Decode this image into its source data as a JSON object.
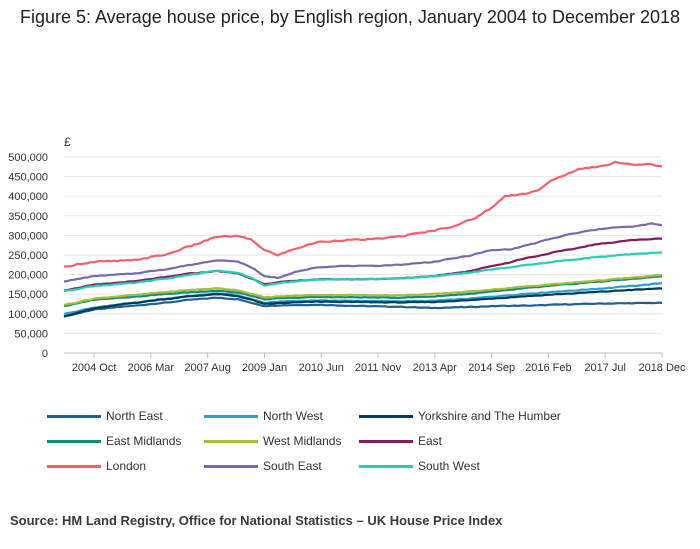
{
  "chart_data": {
    "type": "line",
    "title": "Figure 5: Average house price, by English region, January 2004 to December 2018",
    "ylabel": "£",
    "xlabel": "",
    "ylim": [
      0,
      500000
    ],
    "xlim": [
      0,
      179
    ],
    "y_ticks": [
      0,
      50000,
      100000,
      150000,
      200000,
      250000,
      300000,
      350000,
      400000,
      450000,
      500000
    ],
    "y_tick_labels": [
      "0",
      "50,000",
      "100,000",
      "150,000",
      "200,000",
      "250,000",
      "300,000",
      "350,000",
      "400,000",
      "450,000",
      "500,000"
    ],
    "x_ticks": [
      9,
      26,
      43,
      60,
      77,
      94,
      111,
      128,
      145,
      162,
      179
    ],
    "x_tick_labels": [
      "2004 Oct",
      "2006 Mar",
      "2007 Aug",
      "2009 Jan",
      "2010 Jun",
      "2011 Nov",
      "2013 Apr",
      "2014 Sep",
      "2016 Feb",
      "2017 Jul",
      "2018 Dec"
    ],
    "grid": true,
    "legend_position": "bottom",
    "series": [
      {
        "name": "North East",
        "color": "#206095",
        "anchors": [
          [
            0,
            94000
          ],
          [
            10,
            112000
          ],
          [
            20,
            120000
          ],
          [
            30,
            128000
          ],
          [
            38,
            136000
          ],
          [
            46,
            141000
          ],
          [
            52,
            137000
          ],
          [
            56,
            128000
          ],
          [
            60,
            120000
          ],
          [
            66,
            122000
          ],
          [
            76,
            123000
          ],
          [
            88,
            120000
          ],
          [
            100,
            118000
          ],
          [
            110,
            115000
          ],
          [
            120,
            117000
          ],
          [
            130,
            120000
          ],
          [
            140,
            121000
          ],
          [
            150,
            124000
          ],
          [
            160,
            126000
          ],
          [
            170,
            127000
          ],
          [
            179,
            128000
          ]
        ]
      },
      {
        "name": "North West",
        "color": "#27a0cc",
        "anchors": [
          [
            0,
            100000
          ],
          [
            10,
            117000
          ],
          [
            20,
            127000
          ],
          [
            30,
            138000
          ],
          [
            38,
            146000
          ],
          [
            46,
            152000
          ],
          [
            52,
            147000
          ],
          [
            56,
            138000
          ],
          [
            60,
            128000
          ],
          [
            66,
            132000
          ],
          [
            76,
            134000
          ],
          [
            88,
            133000
          ],
          [
            100,
            132000
          ],
          [
            110,
            133000
          ],
          [
            120,
            138000
          ],
          [
            130,
            145000
          ],
          [
            140,
            152000
          ],
          [
            150,
            158000
          ],
          [
            160,
            164000
          ],
          [
            170,
            171000
          ],
          [
            179,
            178000
          ]
        ]
      },
      {
        "name": "Yorkshire and The Humber",
        "color": "#003c57",
        "anchors": [
          [
            0,
            94000
          ],
          [
            10,
            115000
          ],
          [
            20,
            127000
          ],
          [
            30,
            137000
          ],
          [
            38,
            145000
          ],
          [
            46,
            150000
          ],
          [
            52,
            145000
          ],
          [
            56,
            136000
          ],
          [
            60,
            125000
          ],
          [
            66,
            128000
          ],
          [
            76,
            131000
          ],
          [
            88,
            130000
          ],
          [
            100,
            129000
          ],
          [
            110,
            130000
          ],
          [
            120,
            134000
          ],
          [
            130,
            140000
          ],
          [
            140,
            146000
          ],
          [
            150,
            151000
          ],
          [
            160,
            156000
          ],
          [
            170,
            161000
          ],
          [
            179,
            165000
          ]
        ]
      },
      {
        "name": "East Midlands",
        "color": "#118c7b",
        "anchors": [
          [
            0,
            120000
          ],
          [
            10,
            137000
          ],
          [
            20,
            143000
          ],
          [
            30,
            150000
          ],
          [
            38,
            155000
          ],
          [
            46,
            159000
          ],
          [
            52,
            154000
          ],
          [
            56,
            146000
          ],
          [
            60,
            137000
          ],
          [
            66,
            140000
          ],
          [
            76,
            143000
          ],
          [
            88,
            142000
          ],
          [
            100,
            141000
          ],
          [
            110,
            144000
          ],
          [
            120,
            150000
          ],
          [
            130,
            158000
          ],
          [
            140,
            167000
          ],
          [
            150,
            175000
          ],
          [
            160,
            182000
          ],
          [
            170,
            189000
          ],
          [
            179,
            196000
          ]
        ]
      },
      {
        "name": "West Midlands",
        "color": "#a8bd3a",
        "anchors": [
          [
            0,
            123000
          ],
          [
            10,
            140000
          ],
          [
            20,
            147000
          ],
          [
            30,
            155000
          ],
          [
            38,
            161000
          ],
          [
            46,
            165000
          ],
          [
            52,
            160000
          ],
          [
            56,
            151000
          ],
          [
            60,
            142000
          ],
          [
            66,
            145000
          ],
          [
            76,
            148000
          ],
          [
            88,
            148000
          ],
          [
            100,
            147000
          ],
          [
            110,
            150000
          ],
          [
            120,
            156000
          ],
          [
            130,
            163000
          ],
          [
            140,
            171000
          ],
          [
            150,
            178000
          ],
          [
            160,
            185000
          ],
          [
            170,
            192000
          ],
          [
            179,
            199000
          ]
        ]
      },
      {
        "name": "East",
        "color": "#871a5b",
        "anchors": [
          [
            0,
            160000
          ],
          [
            10,
            175000
          ],
          [
            20,
            182000
          ],
          [
            30,
            193000
          ],
          [
            38,
            203000
          ],
          [
            46,
            209000
          ],
          [
            52,
            203000
          ],
          [
            56,
            190000
          ],
          [
            60,
            176000
          ],
          [
            66,
            182000
          ],
          [
            76,
            188000
          ],
          [
            88,
            188000
          ],
          [
            100,
            190000
          ],
          [
            110,
            196000
          ],
          [
            120,
            207000
          ],
          [
            130,
            225000
          ],
          [
            140,
            245000
          ],
          [
            150,
            262000
          ],
          [
            160,
            278000
          ],
          [
            170,
            288000
          ],
          [
            179,
            292000
          ]
        ]
      },
      {
        "name": "London",
        "color": "#f66068",
        "anchors": [
          [
            0,
            219000
          ],
          [
            5,
            228000
          ],
          [
            10,
            233000
          ],
          [
            20,
            236000
          ],
          [
            30,
            250000
          ],
          [
            38,
            273000
          ],
          [
            44,
            291000
          ],
          [
            46,
            297000
          ],
          [
            52,
            298000
          ],
          [
            56,
            290000
          ],
          [
            60,
            262000
          ],
          [
            64,
            250000
          ],
          [
            70,
            268000
          ],
          [
            76,
            283000
          ],
          [
            84,
            288000
          ],
          [
            92,
            290000
          ],
          [
            100,
            297000
          ],
          [
            108,
            308000
          ],
          [
            116,
            322000
          ],
          [
            122,
            340000
          ],
          [
            128,
            370000
          ],
          [
            132,
            400000
          ],
          [
            138,
            407000
          ],
          [
            142,
            415000
          ],
          [
            146,
            440000
          ],
          [
            150,
            455000
          ],
          [
            154,
            468000
          ],
          [
            158,
            474000
          ],
          [
            162,
            478000
          ],
          [
            165,
            487000
          ],
          [
            170,
            480000
          ],
          [
            175,
            482000
          ],
          [
            179,
            475000
          ]
        ]
      },
      {
        "name": "South East",
        "color": "#746cb1",
        "anchors": [
          [
            0,
            183000
          ],
          [
            10,
            197000
          ],
          [
            20,
            202000
          ],
          [
            30,
            213000
          ],
          [
            38,
            225000
          ],
          [
            46,
            237000
          ],
          [
            52,
            233000
          ],
          [
            56,
            219000
          ],
          [
            60,
            196000
          ],
          [
            64,
            192000
          ],
          [
            70,
            208000
          ],
          [
            76,
            219000
          ],
          [
            84,
            222000
          ],
          [
            92,
            222000
          ],
          [
            100,
            225000
          ],
          [
            110,
            232000
          ],
          [
            120,
            246000
          ],
          [
            128,
            262000
          ],
          [
            134,
            265000
          ],
          [
            140,
            278000
          ],
          [
            146,
            292000
          ],
          [
            152,
            304000
          ],
          [
            158,
            313000
          ],
          [
            164,
            320000
          ],
          [
            170,
            322000
          ],
          [
            176,
            330000
          ],
          [
            179,
            326000
          ]
        ]
      },
      {
        "name": "South West",
        "color": "#22d0b6",
        "anchors": [
          [
            0,
            158000
          ],
          [
            10,
            172000
          ],
          [
            20,
            178000
          ],
          [
            30,
            189000
          ],
          [
            38,
            200000
          ],
          [
            46,
            210000
          ],
          [
            52,
            204000
          ],
          [
            56,
            192000
          ],
          [
            60,
            172000
          ],
          [
            66,
            180000
          ],
          [
            76,
            188000
          ],
          [
            88,
            188000
          ],
          [
            100,
            190000
          ],
          [
            110,
            195000
          ],
          [
            120,
            204000
          ],
          [
            130,
            215000
          ],
          [
            140,
            226000
          ],
          [
            150,
            236000
          ],
          [
            160,
            245000
          ],
          [
            170,
            252000
          ],
          [
            179,
            257000
          ]
        ]
      }
    ]
  },
  "footer": {
    "source": "Source: HM Land Registry, Office for National Statistics – UK House Price Index"
  }
}
